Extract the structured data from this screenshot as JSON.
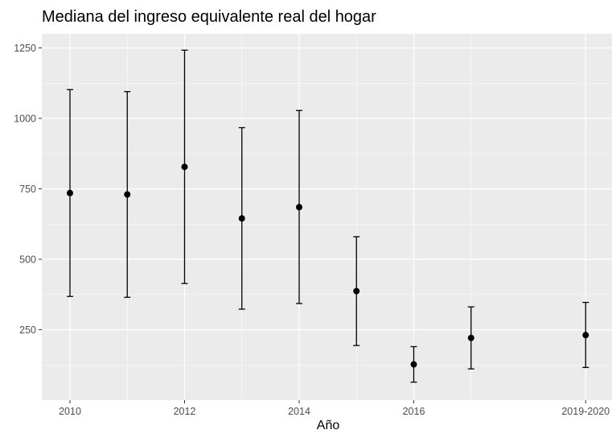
{
  "chart_data": {
    "type": "scatter",
    "title": "Mediana del ingreso equivalente real del hogar",
    "xlabel": "Año",
    "ylabel": "",
    "x_ticks": [
      "2010",
      "2012",
      "2014",
      "2016",
      "2019-2020"
    ],
    "y_ticks": [
      "250",
      "500",
      "750",
      "1000",
      "1250"
    ],
    "ylim": [
      0,
      1300
    ],
    "grid": true,
    "panel_background": "#ebebeb",
    "grid_color": "#ffffff",
    "point_color": "#000000",
    "points": [
      {
        "x": 0,
        "y": 735,
        "ymin": 368,
        "ymax": 1102
      },
      {
        "x": 1,
        "y": 730,
        "ymin": 365,
        "ymax": 1095
      },
      {
        "x": 2,
        "y": 828,
        "ymin": 414,
        "ymax": 1242
      },
      {
        "x": 3,
        "y": 645,
        "ymin": 323,
        "ymax": 967
      },
      {
        "x": 4,
        "y": 685,
        "ymin": 343,
        "ymax": 1028
      },
      {
        "x": 5,
        "y": 387,
        "ymin": 194,
        "ymax": 580
      },
      {
        "x": 6,
        "y": 127,
        "ymin": 64,
        "ymax": 190
      },
      {
        "x": 7,
        "y": 221,
        "ymin": 111,
        "ymax": 331
      },
      {
        "x": 9,
        "y": 231,
        "ymin": 116,
        "ymax": 347
      }
    ]
  }
}
